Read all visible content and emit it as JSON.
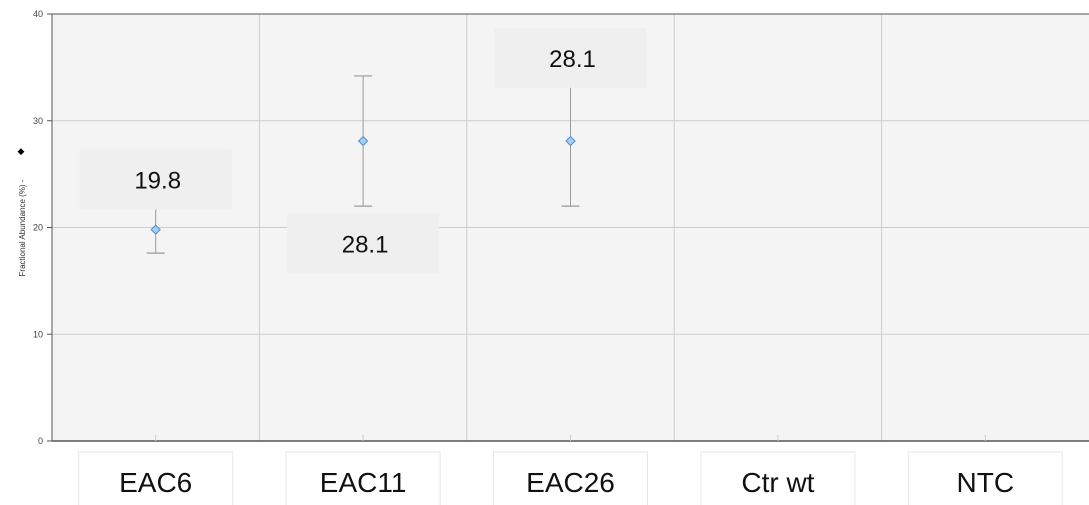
{
  "chart_data": {
    "type": "scatter",
    "ylabel": "Fractional Abundance (%) -",
    "ylabel_marker": "◆",
    "ylim": [
      0,
      40
    ],
    "yticks": [
      0,
      10,
      20,
      30,
      40
    ],
    "categories": [
      "EAC6",
      "EAC11",
      "EAC26",
      "Ctr wt",
      "NTC"
    ],
    "series": [
      {
        "values": [
          19.8,
          28.1,
          28.1,
          null,
          null
        ],
        "err_low": [
          17.6,
          22.0,
          22.0,
          null,
          null
        ],
        "err_high": [
          22.1,
          34.2,
          33.5,
          null,
          null
        ]
      }
    ],
    "annotations": [
      {
        "category": "EAC6",
        "text": "19.8",
        "anchor_value": 24.5
      },
      {
        "category": "EAC11",
        "text": "28.1",
        "anchor_value": 18.5
      },
      {
        "category": "EAC26",
        "text": "28.1",
        "anchor_value": 35.9
      }
    ],
    "grid": true,
    "colors": {
      "marker_fill": "#a9cdf4",
      "marker_stroke": "#4a90d9",
      "error_bar": "#9a9a9a",
      "grid": "#cccccc",
      "plot_bg": "#f4f4f4",
      "axis": "#555555",
      "callout_bg": "#efefef"
    }
  }
}
